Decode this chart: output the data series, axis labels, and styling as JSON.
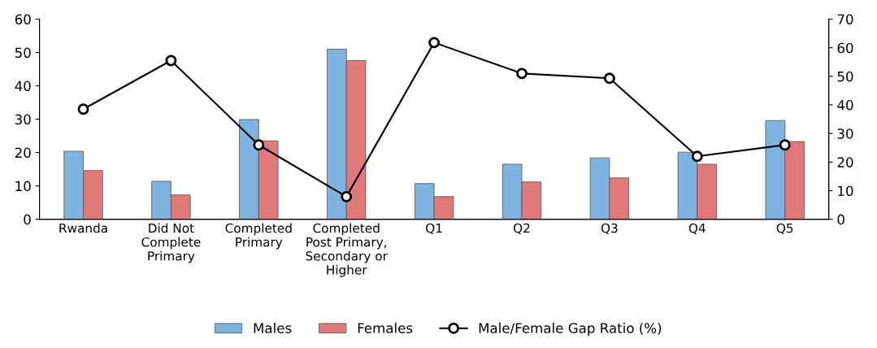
{
  "chart_data": {
    "type": "bar",
    "categories": [
      "Rwanda",
      "Did Not\nComplete\nPrimary",
      "Completed\nPrimary",
      "Completed\nPost Primary,\nSecondary or\nHigher",
      "Q1",
      "Q2",
      "Q3",
      "Q4",
      "Q5"
    ],
    "series": [
      {
        "name": "Males",
        "color": "#7fb3e0",
        "values": [
          20.4,
          11.4,
          29.9,
          51.0,
          10.7,
          16.5,
          18.4,
          20.1,
          29.6
        ]
      },
      {
        "name": "Females",
        "color": "#e07a7a",
        "values": [
          14.6,
          7.3,
          23.5,
          47.6,
          6.8,
          11.2,
          12.4,
          16.5,
          23.3
        ]
      },
      {
        "name": "Male/Female Gap Ratio (%)",
        "type": "line",
        "axis": "y2",
        "color": "#000000",
        "values": [
          38.5,
          55.5,
          26.0,
          7.9,
          61.8,
          51.0,
          49.3,
          22.0,
          26.0
        ]
      }
    ],
    "ylim": [
      0,
      60
    ],
    "yticks": [
      0,
      10,
      20,
      30,
      40,
      50,
      60
    ],
    "y2lim": [
      0,
      70
    ],
    "y2ticks": [
      0,
      10,
      20,
      30,
      40,
      50,
      60,
      70
    ],
    "marker": "circle",
    "line_style": "solid",
    "grid": false,
    "legend": "bottom"
  }
}
